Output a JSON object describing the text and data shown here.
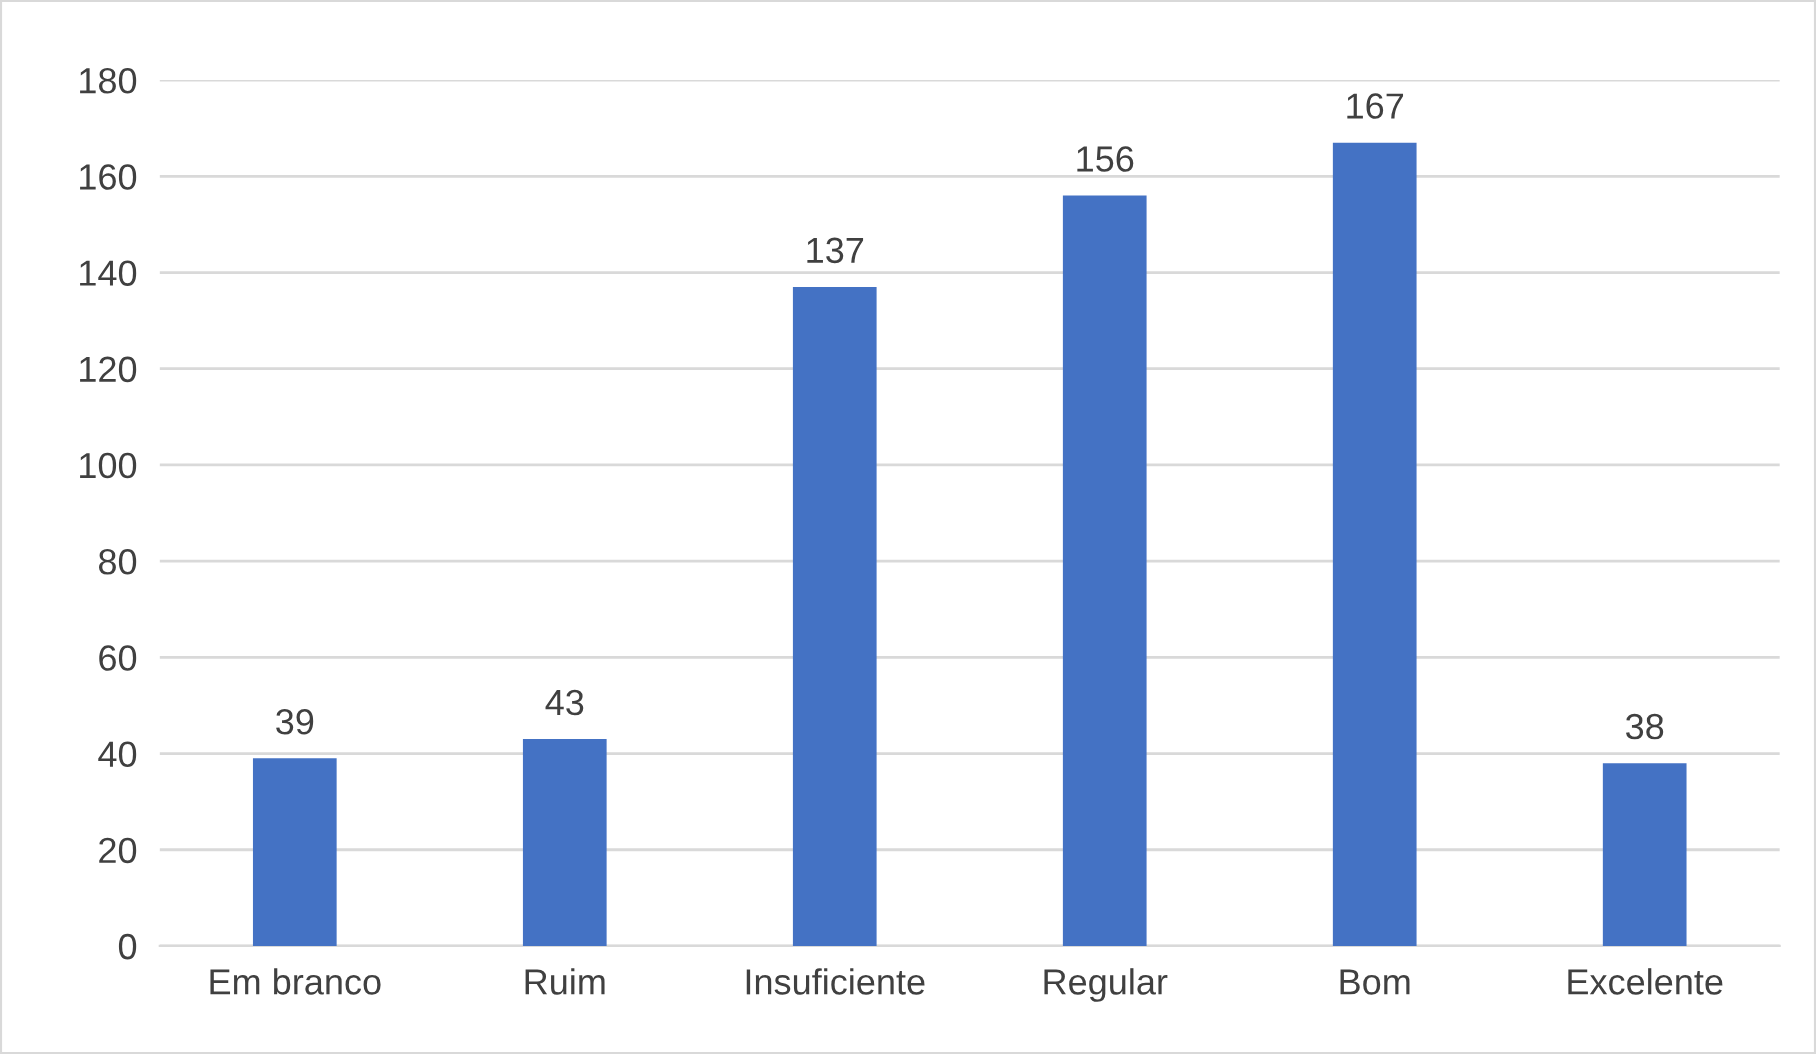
{
  "chart_data": {
    "type": "bar",
    "categories": [
      "Em branco",
      "Ruim",
      "Insuficiente",
      "Regular",
      "Bom",
      "Excelente"
    ],
    "values": [
      39,
      43,
      137,
      156,
      167,
      38
    ],
    "color": "#4472c4",
    "ylim": [
      0,
      180
    ],
    "yticks": [
      0,
      20,
      40,
      60,
      80,
      100,
      120,
      140,
      160,
      180
    ],
    "grid": "y",
    "data_labels": true,
    "legend": false
  }
}
